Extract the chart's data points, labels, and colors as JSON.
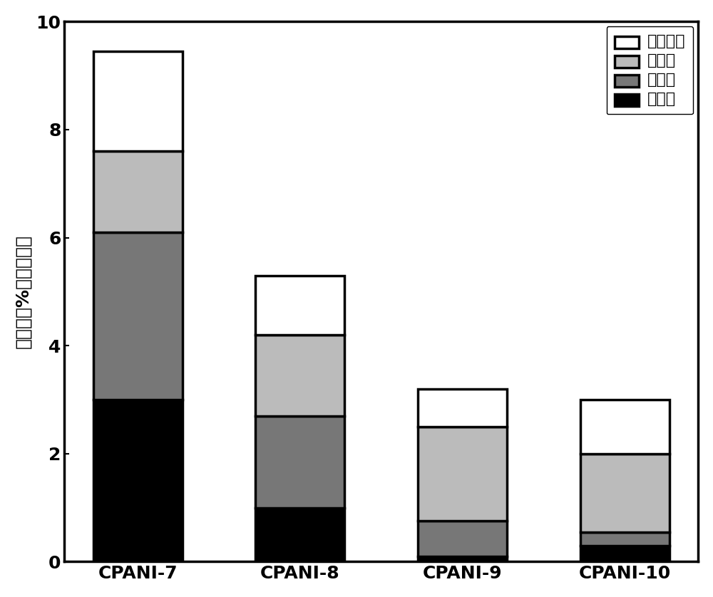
{
  "categories": [
    "CPANI-7",
    "CPANI-8",
    "CPANI-9",
    "CPANI-10"
  ],
  "pyridine_n": [
    3.0,
    1.0,
    0.1,
    0.3
  ],
  "pyrrole_n": [
    3.1,
    1.7,
    0.65,
    0.25
  ],
  "graphite_n": [
    1.5,
    1.5,
    1.75,
    1.45
  ],
  "oxide_n": [
    1.85,
    1.1,
    0.7,
    1.0
  ],
  "colors": {
    "pyridine": "#000000",
    "pyrrole": "#777777",
    "graphite": "#bbbbbb",
    "oxide": "#ffffff"
  },
  "ylabel": "氮含量（%所有原子）",
  "ylim": [
    0,
    10
  ],
  "yticks": [
    0,
    2,
    4,
    6,
    8,
    10
  ],
  "legend_labels": [
    "氮氧化物",
    "石墨氮",
    "吵和氮",
    "吵啄氮"
  ],
  "bar_width": 0.55,
  "edgecolor": "#000000",
  "linewidth": 2.5,
  "label_fontsize": 18,
  "tick_fontsize": 18,
  "legend_fontsize": 16,
  "background_color": "#ffffff"
}
